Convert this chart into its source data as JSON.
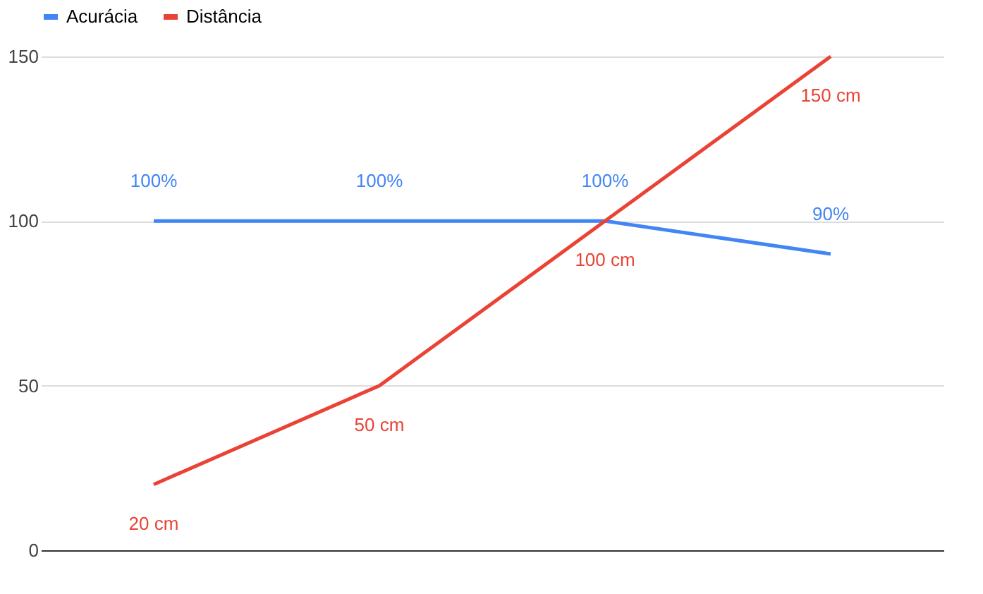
{
  "chart_data": {
    "type": "line",
    "categories": [
      null,
      null,
      null,
      null
    ],
    "ylim": [
      0,
      150
    ],
    "yticks": [
      0,
      50,
      100,
      150
    ],
    "grid": "y",
    "legend": "top",
    "tick_labels": "y",
    "marker": "none",
    "line_style": "solid",
    "series": [
      {
        "name": "Acurácia",
        "color": "#4285f4",
        "values": [
          100,
          100,
          100,
          90
        ],
        "value_labels": [
          "100%",
          "100%",
          "100%",
          "90%"
        ]
      },
      {
        "name": "Distância",
        "color": "#ea4335",
        "values": [
          20,
          50,
          100,
          150
        ],
        "value_labels": [
          "20 cm",
          "50 cm",
          "100 cm",
          "150 cm"
        ]
      }
    ]
  }
}
